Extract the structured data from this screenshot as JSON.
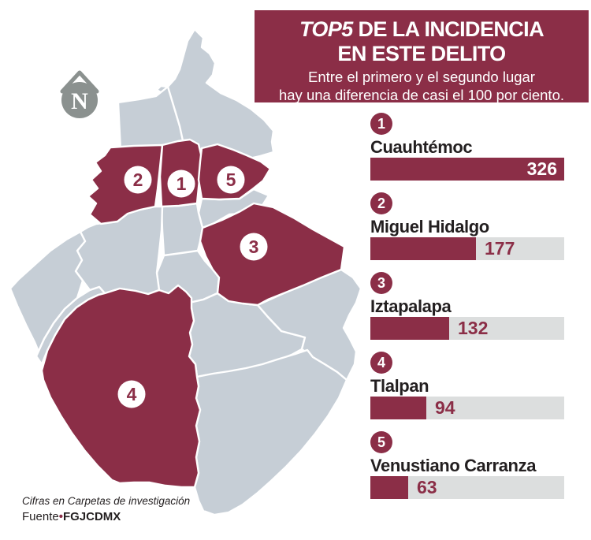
{
  "title": {
    "brand": "TOP5",
    "line1_rest": " DE LA INCIDENCIA",
    "line2": "EN ESTE DELITO",
    "subtitle_line1": "Entre el primero y el segundo lugar",
    "subtitle_line2": "hay una diferencia de casi el 100 por ciento."
  },
  "chart_data": {
    "type": "bar",
    "title": "TOP5 DE LA INCIDENCIA EN ESTE DELITO",
    "subtitle": "Entre el primero y el segundo lugar hay una diferencia de casi el 100 por ciento.",
    "categories": [
      "Cuauhtémoc",
      "Miguel Hidalgo",
      "Iztapalapa",
      "Tlalpan",
      "Venustiano Carranza"
    ],
    "ranks": [
      "1",
      "2",
      "3",
      "4",
      "5"
    ],
    "values": [
      326,
      177,
      132,
      94,
      63
    ],
    "xlim": [
      0,
      326
    ],
    "orientation": "horizontal",
    "grid": false,
    "value_labels": "shown at end of each bar",
    "bar_color": "#8b2e47",
    "track_color": "#dcdede"
  },
  "map": {
    "type": "choropleth-highlight",
    "highlighted_ranks_on_map": [
      "1",
      "2",
      "3",
      "4",
      "5"
    ],
    "badge_style": "white circle with maroon number",
    "region_fill": "#c6ced6",
    "highlight_fill": "#8b2e47"
  },
  "compass": {
    "letter": "N"
  },
  "footer": {
    "note": "Cifras en Carpetas de investigación",
    "source_prefix": "Fuente",
    "bullet": "•",
    "source": "FGJCDMX"
  },
  "colors": {
    "maroon": "#8b2e47",
    "map_gray": "#c6ced6",
    "track_gray": "#dcdede",
    "text_dark": "#231f20",
    "compass_gray": "#8b918f",
    "background": "#ffffff"
  }
}
